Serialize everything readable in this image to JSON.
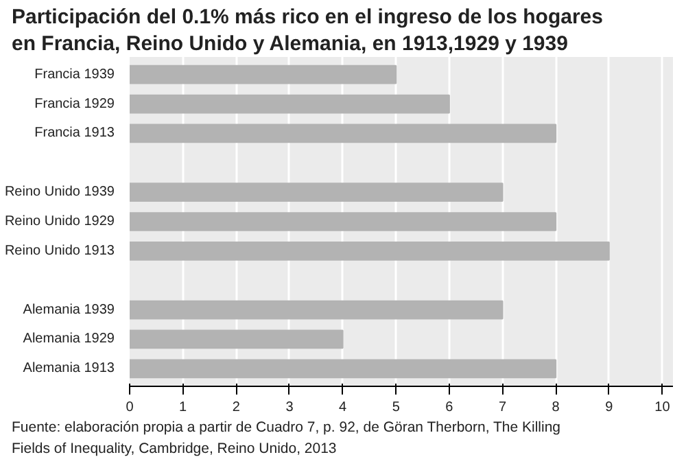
{
  "chart_data": {
    "type": "bar",
    "orientation": "horizontal",
    "title": "Participación del 0.1% más rico en el ingreso de los hogares en Francia, Reino Unido y Alemania, en 1913,1929 y 1939",
    "categories": [
      "Francia 1939",
      "Francia 1929",
      "Francia 1913",
      null,
      "Reino Unido 1939",
      "Reino Unido 1929",
      "Reino Unido 1913",
      null,
      "Alemania 1939",
      "Alemania 1929",
      "Alemania 1913"
    ],
    "values": [
      5,
      6,
      8,
      null,
      7,
      8,
      9,
      null,
      7,
      4,
      8
    ],
    "color": "#b3b3b3",
    "xlim": [
      0,
      10.2
    ],
    "xticks": [
      0,
      1,
      2,
      3,
      4,
      5,
      6,
      7,
      8,
      9,
      10
    ],
    "grid": "x",
    "annotations": [
      "Fuente: elaboración propia a partir de Cuadro 7, p. 92, de Göran Therborn, The Killing Fields of Inequality, Cambridge, Reino Unido, 2013"
    ]
  }
}
